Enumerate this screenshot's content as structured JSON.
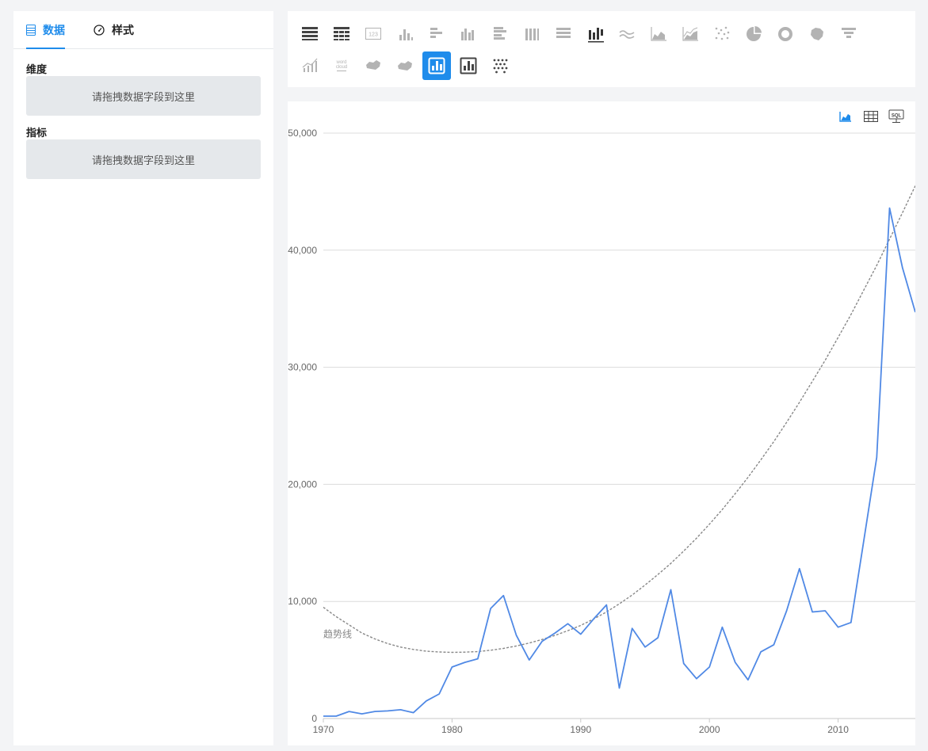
{
  "left_panel": {
    "tabs": [
      {
        "label": "数据",
        "icon": "table-icon",
        "active": true
      },
      {
        "label": "样式",
        "icon": "dashboard-icon",
        "active": false
      }
    ],
    "dimension_label": "维度",
    "metric_label": "指标",
    "dimension_placeholder": "请拖拽数据字段到这里",
    "metric_placeholder": "请拖拽数据字段到这里"
  },
  "toolbar": {
    "chart_types": [
      "table-icon",
      "pivot-table-icon",
      "number-card-icon",
      "column-chart-icon",
      "bar-chart-icon",
      "grouped-column-icon",
      "grouped-bar-icon",
      "stacked-column-icon",
      "stacked-bar-icon",
      "waterfall-icon",
      "line-chart-icon",
      "area-chart-icon",
      "stacked-area-icon",
      "scatter-icon",
      "pie-icon",
      "donut-icon",
      "map-icon",
      "funnel-icon",
      "combo-chart-icon",
      "word-cloud-icon",
      "china-map-icon",
      "china-flow-map-icon",
      "selected-bar-chart-icon",
      "bar-chart-outline-icon",
      "dot-matrix-icon"
    ],
    "active_chart_type": "selected-bar-chart-icon",
    "word_cloud_text": [
      "word",
      "cloud"
    ]
  },
  "chart_view_buttons": [
    "chart-view-icon",
    "table-view-icon",
    "sql-view-icon"
  ],
  "sql_label": "SQL",
  "chart_data": {
    "type": "line",
    "x": [
      1970,
      1971,
      1972,
      1973,
      1974,
      1975,
      1976,
      1977,
      1978,
      1979,
      1980,
      1981,
      1982,
      1983,
      1984,
      1985,
      1986,
      1987,
      1988,
      1989,
      1990,
      1991,
      1992,
      1993,
      1994,
      1995,
      1996,
      1997,
      1998,
      1999,
      2000,
      2001,
      2002,
      2003,
      2004,
      2005,
      2006,
      2007,
      2008,
      2009,
      2010,
      2011,
      2012,
      2013,
      2014,
      2015,
      2016
    ],
    "series": [
      {
        "color": "#5089e5",
        "values": [
          200,
          200,
          600,
          400,
          600,
          650,
          750,
          500,
          1500,
          2100,
          4400,
          4800,
          5100,
          9400,
          10500,
          7100,
          5000,
          6600,
          7300,
          8100,
          7200,
          8500,
          9700,
          2600,
          7700,
          6100,
          6900,
          11000,
          4700,
          3400,
          4400,
          7800,
          4800,
          3300,
          5700,
          6300,
          9200,
          12800,
          9100,
          9200,
          7800,
          8200,
          15200,
          22300,
          43600,
          38500,
          34700
        ]
      }
    ],
    "trendline": {
      "label": "趋势线",
      "color": "#888888",
      "values": [
        9500,
        8700,
        8000,
        7300,
        6800,
        6400,
        6100,
        5900,
        5750,
        5680,
        5650,
        5670,
        5720,
        5830,
        5990,
        6200,
        6450,
        6750,
        7100,
        7500,
        7950,
        8500,
        9100,
        9800,
        10550,
        11400,
        12300,
        13250,
        14300,
        15400,
        16600,
        17850,
        19200,
        20600,
        22100,
        23650,
        25300,
        27000,
        28800,
        30600,
        32550,
        34500,
        36600,
        38700,
        40950,
        43200,
        45500
      ]
    },
    "yticks": [
      "0",
      "10,000",
      "20,000",
      "30,000",
      "40,000",
      "50,000"
    ],
    "xticks": [
      "1970",
      "1980",
      "1990",
      "2000",
      "2010"
    ],
    "xlim": [
      1970,
      2016
    ],
    "ylim": [
      0,
      50000
    ],
    "grid": true
  }
}
